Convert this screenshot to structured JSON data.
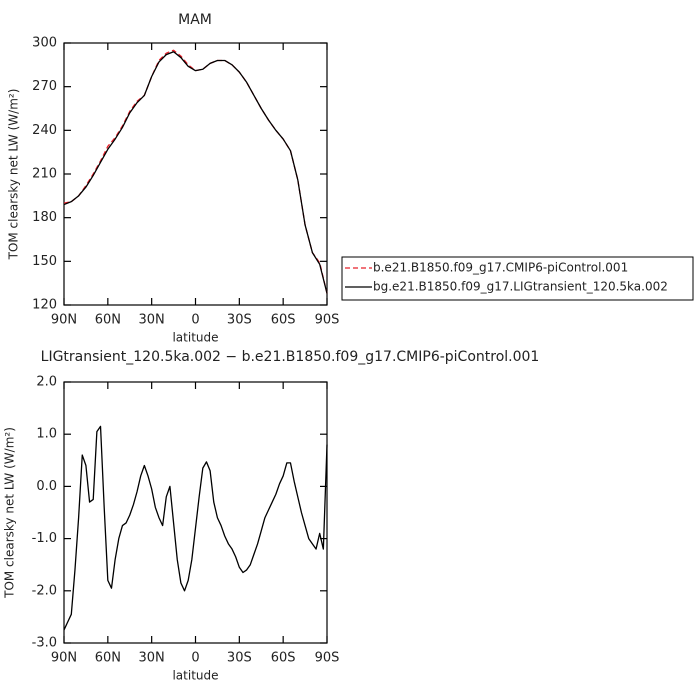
{
  "chart_data": [
    {
      "type": "line",
      "title": "MAM",
      "xlabel": "latitude",
      "ylabel": "TOM clearsky net LW (W/m²)",
      "x": [
        90,
        85,
        80,
        75,
        70,
        65,
        60,
        55,
        50,
        45,
        40,
        35,
        30,
        25,
        20,
        15,
        10,
        5,
        0,
        -5,
        -10,
        -15,
        -20,
        -25,
        -30,
        -35,
        -40,
        -45,
        -50,
        -55,
        -60,
        -65,
        -70,
        -75,
        -80,
        -85,
        -90
      ],
      "xlim": [
        90,
        -90
      ],
      "xticks": [
        {
          "value": 90,
          "label": "90N"
        },
        {
          "value": 60,
          "label": "60N"
        },
        {
          "value": 30,
          "label": "30N"
        },
        0,
        {
          "value": -30,
          "label": "30S"
        },
        {
          "value": -60,
          "label": "60S"
        },
        {
          "value": -90,
          "label": "90S"
        }
      ],
      "ylim": [
        120,
        300
      ],
      "yticks": [
        120,
        150,
        180,
        210,
        240,
        270,
        300
      ],
      "legend": "right",
      "series": [
        {
          "name": "b.e21.B1850.f09_g17.CMIP6-piControl.001",
          "color": "#e8202a",
          "linestyle": "dashed",
          "values": [
            190,
            191,
            195,
            202,
            210,
            219,
            229,
            235,
            243,
            253,
            260,
            264,
            277,
            288,
            293,
            295,
            291,
            285,
            281,
            282,
            286,
            288,
            288,
            285,
            280,
            273,
            264,
            255,
            247,
            240,
            234,
            226,
            206,
            175,
            156,
            149,
            128
          ]
        },
        {
          "name": "bg.e21.B1850.f09_g17.LIGtransient_120.5ka.002",
          "color": "#000000",
          "linestyle": "solid",
          "values": [
            189,
            191,
            195,
            201,
            209,
            218,
            227,
            234,
            242,
            252,
            259,
            264,
            277,
            287,
            292,
            294,
            290,
            284,
            281,
            282,
            286,
            288,
            288,
            285,
            280,
            273,
            264,
            255,
            247,
            240,
            234,
            226,
            206,
            175,
            156,
            148,
            128
          ]
        }
      ]
    },
    {
      "type": "line",
      "title": "LIGtransient_120.5ka.002 − b.e21.B1850.f09_g17.CMIP6-piControl.001",
      "xlabel": "latitude",
      "ylabel": "TOM clearsky net LW (W/m²)",
      "x": [
        90,
        87.5,
        85,
        82.5,
        80,
        77.5,
        75,
        72.5,
        70,
        67.5,
        65,
        62.5,
        60,
        57.5,
        55,
        52.5,
        50,
        47.5,
        45,
        42.5,
        40,
        37.5,
        35,
        32.5,
        30,
        27.5,
        25,
        22.5,
        20,
        17.5,
        15,
        12.5,
        10,
        7.5,
        5,
        2.5,
        0,
        -2.5,
        -5,
        -7.5,
        -10,
        -12.5,
        -15,
        -17.5,
        -20,
        -22.5,
        -25,
        -27.5,
        -30,
        -32.5,
        -35,
        -37.5,
        -40,
        -42.5,
        -45,
        -47.5,
        -50,
        -52.5,
        -55,
        -57.5,
        -60,
        -62.5,
        -65,
        -67.5,
        -70,
        -72.5,
        -75,
        -77.5,
        -80,
        -82.5,
        -85,
        -87.5,
        -90
      ],
      "xlim": [
        90,
        -90
      ],
      "xticks": [
        {
          "value": 90,
          "label": "90N"
        },
        {
          "value": 60,
          "label": "60N"
        },
        {
          "value": 30,
          "label": "30N"
        },
        0,
        {
          "value": -30,
          "label": "30S"
        },
        {
          "value": -60,
          "label": "60S"
        },
        {
          "value": -90,
          "label": "90S"
        }
      ],
      "ylim": [
        -3,
        2
      ],
      "yticks": [
        {
          "value": -3,
          "label": "-3.0"
        },
        {
          "value": -2,
          "label": "-2.0"
        },
        {
          "value": -1,
          "label": "-1.0"
        },
        {
          "value": 0,
          "label": "0.0"
        },
        {
          "value": 1,
          "label": "1.0"
        },
        {
          "value": 2,
          "label": "2.0"
        }
      ],
      "series": [
        {
          "color": "#000000",
          "linestyle": "solid",
          "values": [
            -2.75,
            -2.6,
            -2.45,
            -1.6,
            -0.6,
            0.6,
            0.4,
            -0.3,
            -0.25,
            1.05,
            1.15,
            -0.4,
            -1.8,
            -1.95,
            -1.4,
            -1.0,
            -0.75,
            -0.7,
            -0.55,
            -0.35,
            -0.1,
            0.2,
            0.4,
            0.2,
            -0.05,
            -0.4,
            -0.6,
            -0.75,
            -0.2,
            0.0,
            -0.7,
            -1.4,
            -1.85,
            -2.0,
            -1.8,
            -1.4,
            -0.8,
            -0.2,
            0.35,
            0.47,
            0.3,
            -0.3,
            -0.6,
            -0.75,
            -0.95,
            -1.1,
            -1.2,
            -1.35,
            -1.55,
            -1.65,
            -1.6,
            -1.5,
            -1.3,
            -1.1,
            -0.85,
            -0.6,
            -0.45,
            -0.3,
            -0.15,
            0.05,
            0.2,
            0.45,
            0.45,
            0.1,
            -0.2,
            -0.5,
            -0.75,
            -1.0,
            -1.1,
            -1.2,
            -0.9,
            -1.2,
            0.8
          ]
        }
      ]
    }
  ]
}
